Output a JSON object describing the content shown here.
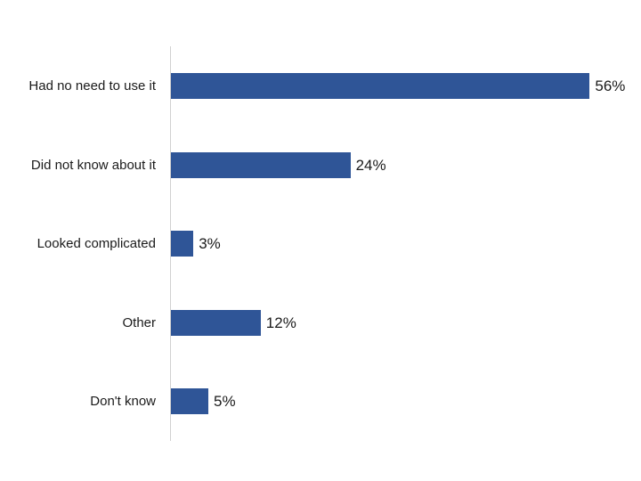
{
  "chart_data": {
    "type": "bar",
    "orientation": "horizontal",
    "title": "",
    "xlabel": "",
    "ylabel": "",
    "categories": [
      "Had no need to use it",
      "Did not know about it",
      "Looked complicated",
      "Other",
      "Don't know"
    ],
    "values": [
      56,
      24,
      3,
      12,
      5
    ],
    "value_labels": [
      "56%",
      "24%",
      "3%",
      "12%",
      "5%"
    ],
    "unit": "%",
    "xlim": [
      0,
      60
    ],
    "grid": false,
    "legend": null,
    "bar_color": "#2F5597",
    "axis_color": "#D0D0D0"
  }
}
